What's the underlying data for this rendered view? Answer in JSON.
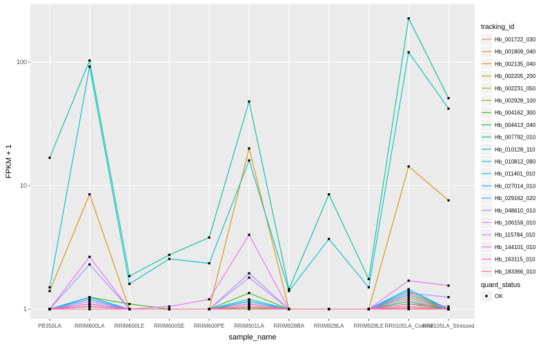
{
  "chart_data": {
    "type": "line",
    "x_title": "sample_name",
    "y_title": "FPKM + 1",
    "y_scale": "log10",
    "y_ticks": [
      1,
      10,
      100
    ],
    "y_tick_labels": [
      "1",
      "10",
      "100"
    ],
    "categories": [
      "PB350LA",
      "RRIM600LA",
      "RRIM600LE",
      "RRIM600SE",
      "RRIM600PE",
      "RRIM901LA",
      "RRIM928BA",
      "RRIM928LA",
      "RRIM928LE",
      "RRII105LA_Control",
      "RRII105LA_Stressed"
    ],
    "categories_display": [
      "PB350LA",
      "RRIM600LA",
      "RRIM600LE",
      "RRIM600SE",
      "RRIM600PE",
      "RRIM901LA",
      "RRIM928BA",
      "RRIM928LA",
      "RRIM928LE",
      "RRII105LA_Control",
      "RRII105LA_Stressed"
    ],
    "legend_title": "tracking_id",
    "legend_position": "right",
    "shape_legend_title": "quant_status",
    "shape_legend_items": [
      "OK"
    ],
    "grid": true,
    "series": [
      {
        "name": "Hb_001722_030",
        "color": "#F8766D",
        "values": [
          1.0,
          1.05,
          1.0,
          1.0,
          1.0,
          1.05,
          1.0,
          1.0,
          1.0,
          1.02,
          1.0
        ]
      },
      {
        "name": "Hb_001809_040",
        "color": "#EA8331",
        "values": [
          1.0,
          1.1,
          1.0,
          1.0,
          1.0,
          1.1,
          1.0,
          1.0,
          1.0,
          1.35,
          1.0
        ]
      },
      {
        "name": "Hb_002135_040",
        "color": "#D89000",
        "values": [
          1.4,
          8.5,
          1.0,
          1.0,
          1.0,
          20.0,
          1.0,
          1.0,
          1.0,
          14.3,
          7.6
        ]
      },
      {
        "name": "Hb_002205_200",
        "color": "#C09B00",
        "values": [
          1.0,
          1.0,
          1.0,
          1.0,
          1.0,
          1.05,
          1.0,
          1.0,
          1.0,
          1.25,
          1.0
        ]
      },
      {
        "name": "Hb_002231_050",
        "color": "#A3A500",
        "values": [
          1.0,
          1.0,
          1.0,
          1.0,
          1.0,
          1.0,
          1.0,
          1.0,
          1.0,
          1.0,
          1.0
        ]
      },
      {
        "name": "Hb_002928_100",
        "color": "#7CAE00",
        "values": [
          1.0,
          1.05,
          1.0,
          1.0,
          1.0,
          1.02,
          1.0,
          1.0,
          1.0,
          1.05,
          1.0
        ]
      },
      {
        "name": "Hb_004162_300",
        "color": "#39B600",
        "values": [
          1.0,
          1.25,
          1.1,
          1.0,
          1.0,
          1.35,
          1.0,
          1.0,
          1.0,
          1.1,
          1.0
        ]
      },
      {
        "name": "Hb_004413_040",
        "color": "#00BB4E",
        "values": [
          1.0,
          1.1,
          1.0,
          1.0,
          1.0,
          1.15,
          1.0,
          1.0,
          1.0,
          1.15,
          1.0
        ]
      },
      {
        "name": "Hb_007792_010",
        "color": "#00BF7D",
        "values": [
          1.0,
          1.05,
          1.0,
          1.0,
          1.0,
          1.05,
          1.0,
          1.0,
          1.0,
          1.0,
          1.0
        ]
      },
      {
        "name": "Hb_010128_110",
        "color": "#00C1A3",
        "values": [
          16.8,
          103.0,
          1.85,
          2.75,
          3.8,
          48.0,
          1.45,
          8.5,
          1.75,
          226.0,
          51.0
        ]
      },
      {
        "name": "Hb_010812_090",
        "color": "#00BFC4",
        "values": [
          1.5,
          92.0,
          1.6,
          2.55,
          2.35,
          16.0,
          1.4,
          3.7,
          1.5,
          120.0,
          42.0
        ]
      },
      {
        "name": "Hb_011401_010",
        "color": "#00BAE0",
        "values": [
          1.0,
          1.2,
          1.0,
          1.0,
          1.0,
          1.15,
          1.0,
          1.0,
          1.0,
          1.4,
          1.0
        ]
      },
      {
        "name": "Hb_027014_010",
        "color": "#00B0F6",
        "values": [
          1.0,
          1.25,
          1.0,
          1.0,
          1.0,
          1.2,
          1.0,
          1.0,
          1.0,
          1.45,
          1.0
        ]
      },
      {
        "name": "Hb_029162_020",
        "color": "#35A2FF",
        "values": [
          1.0,
          1.2,
          1.0,
          1.0,
          1.0,
          1.1,
          1.0,
          1.0,
          1.0,
          1.3,
          1.0
        ]
      },
      {
        "name": "Hb_048610_010",
        "color": "#9590FF",
        "values": [
          1.0,
          2.3,
          1.0,
          1.0,
          1.0,
          1.95,
          1.0,
          1.0,
          1.0,
          1.35,
          1.25
        ]
      },
      {
        "name": "Hb_106159_010",
        "color": "#C77CFF",
        "values": [
          1.0,
          1.15,
          1.0,
          1.0,
          1.0,
          1.8,
          1.0,
          1.0,
          1.0,
          1.2,
          1.0
        ]
      },
      {
        "name": "Hb_115784_010",
        "color": "#E76BF3",
        "values": [
          1.0,
          2.65,
          1.0,
          1.05,
          1.2,
          4.0,
          1.0,
          1.0,
          1.0,
          1.7,
          1.55
        ]
      },
      {
        "name": "Hb_144101_010",
        "color": "#FA62DB",
        "values": [
          1.0,
          1.1,
          1.0,
          1.0,
          1.0,
          1.1,
          1.0,
          1.0,
          1.0,
          1.05,
          1.0
        ]
      },
      {
        "name": "Hb_163115_010",
        "color": "#FF62BC",
        "values": [
          1.0,
          1.05,
          1.0,
          1.0,
          1.0,
          1.05,
          1.0,
          1.0,
          1.0,
          1.1,
          1.05
        ]
      },
      {
        "name": "Hb_183366_010",
        "color": "#FF6C91",
        "values": [
          1.0,
          1.0,
          1.0,
          1.0,
          1.0,
          1.0,
          1.0,
          1.0,
          1.0,
          1.0,
          1.0
        ]
      }
    ]
  },
  "colors": {
    "panel_background": "#EBEBEB",
    "grid_major": "#FFFFFF",
    "grid_minor": "#F2F2F2",
    "point": "#000000",
    "legend_key_background": "#F2F2F2"
  }
}
